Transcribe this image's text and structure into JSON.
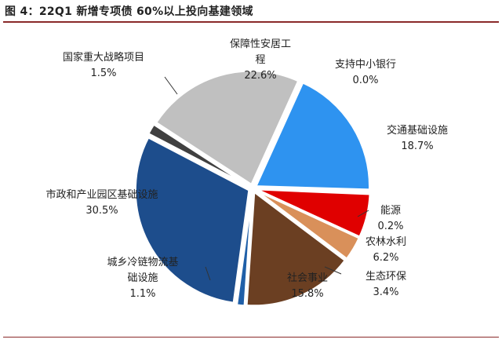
{
  "figure": {
    "title": "图 4：22Q1 新增专项债 60%以上投向基建领域"
  },
  "chart_data": {
    "type": "pie",
    "title": "",
    "slices": [
      {
        "name": "保障性安居工程",
        "value": 22.6,
        "display": "22.6%",
        "color": "#c0c0c0"
      },
      {
        "name": "支持中小银行",
        "value": 0.0,
        "display": "0.0%",
        "color": "#6e7fa8"
      },
      {
        "name": "交通基础设施",
        "value": 18.7,
        "display": "18.7%",
        "color": "#2e93f0"
      },
      {
        "name": "能源",
        "value": 0.2,
        "display": "0.2%",
        "color": "#1a2e6e"
      },
      {
        "name": "农林水利",
        "value": 6.2,
        "display": "6.2%",
        "color": "#e00000"
      },
      {
        "name": "生态环保",
        "value": 3.4,
        "display": "3.4%",
        "color": "#d9905a"
      },
      {
        "name": "社会事业",
        "value": 15.8,
        "display": "15.8%",
        "color": "#6b3f22"
      },
      {
        "name": "城乡冷链物流基础设施",
        "value": 1.1,
        "display": "1.1%",
        "color": "#1f5fa8"
      },
      {
        "name": "市政和产业园区基础设施",
        "value": 30.5,
        "display": "30.5%",
        "color": "#1d4d8c"
      },
      {
        "name": "国家重大战略项目",
        "value": 1.5,
        "display": "1.5%",
        "color": "#404040"
      }
    ]
  }
}
